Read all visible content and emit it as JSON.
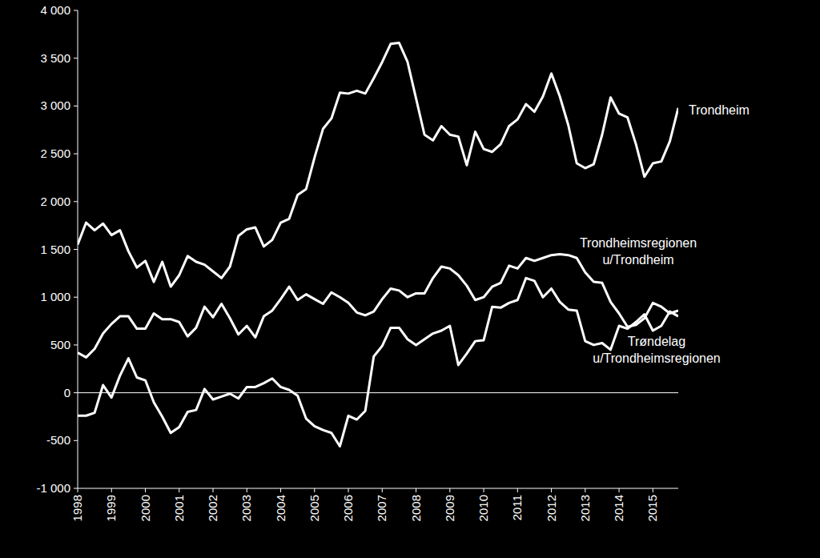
{
  "chart_data": {
    "type": "line",
    "x": [
      1998,
      1998.25,
      1998.5,
      1998.75,
      1999,
      1999.25,
      1999.5,
      1999.75,
      2000,
      2000.25,
      2000.5,
      2000.75,
      2001,
      2001.25,
      2001.5,
      2001.75,
      2002,
      2002.25,
      2002.5,
      2002.75,
      2003,
      2003.25,
      2003.5,
      2003.75,
      2004,
      2004.25,
      2004.5,
      2004.75,
      2005,
      2005.25,
      2005.5,
      2005.75,
      2006,
      2006.25,
      2006.5,
      2006.75,
      2007,
      2007.25,
      2007.5,
      2007.75,
      2008,
      2008.25,
      2008.5,
      2008.75,
      2009,
      2009.25,
      2009.5,
      2009.75,
      2010,
      2010.25,
      2010.5,
      2010.75,
      2011,
      2011.25,
      2011.5,
      2011.75,
      2012,
      2012.25,
      2012.5,
      2012.75,
      2013,
      2013.25,
      2013.5,
      2013.75,
      2014,
      2014.25,
      2014.5,
      2014.75,
      2015,
      2015.25,
      2015.5,
      2015.75
    ],
    "series": [
      {
        "name": "Trondheim",
        "color": "#ffffff",
        "values": [
          1550,
          1780,
          1700,
          1770,
          1650,
          1700,
          1480,
          1310,
          1380,
          1160,
          1370,
          1110,
          1230,
          1430,
          1370,
          1340,
          1270,
          1200,
          1320,
          1640,
          1710,
          1730,
          1530,
          1600,
          1780,
          1820,
          2070,
          2130,
          2460,
          2760,
          2870,
          3140,
          3130,
          3160,
          3130,
          3290,
          3460,
          3650,
          3660,
          3460,
          3080,
          2700,
          2640,
          2790,
          2700,
          2680,
          2380,
          2730,
          2550,
          2520,
          2600,
          2790,
          2860,
          3020,
          2940,
          3100,
          3340,
          3100,
          2800,
          2400,
          2350,
          2390,
          2700,
          3090,
          2920,
          2880,
          2600,
          2260,
          2400,
          2420,
          2630,
          2980
        ]
      },
      {
        "name": "Trondheimsregionen u/Trondheim",
        "color": "#ffffff",
        "values": [
          420,
          370,
          460,
          620,
          720,
          800,
          800,
          670,
          670,
          830,
          770,
          770,
          740,
          590,
          680,
          900,
          790,
          930,
          780,
          610,
          700,
          580,
          800,
          860,
          980,
          1110,
          970,
          1030,
          980,
          930,
          1050,
          1000,
          940,
          840,
          810,
          850,
          980,
          1090,
          1070,
          1000,
          1040,
          1040,
          1200,
          1320,
          1300,
          1230,
          1120,
          970,
          1000,
          1110,
          1150,
          1330,
          1300,
          1410,
          1380,
          1410,
          1440,
          1450,
          1440,
          1410,
          1260,
          1160,
          1150,
          950,
          830,
          690,
          710,
          780,
          940,
          900,
          830,
          860
        ]
      },
      {
        "name": "Trøndelag u/Trondheimsregionen",
        "color": "#ffffff",
        "values": [
          -240,
          -240,
          -210,
          80,
          -50,
          180,
          360,
          160,
          130,
          -100,
          -250,
          -420,
          -360,
          -200,
          -180,
          40,
          -70,
          -40,
          -10,
          -60,
          60,
          60,
          100,
          150,
          60,
          30,
          -30,
          -270,
          -350,
          -390,
          -420,
          -560,
          -240,
          -280,
          -190,
          380,
          490,
          680,
          680,
          560,
          500,
          560,
          620,
          650,
          700,
          290,
          410,
          540,
          550,
          900,
          890,
          940,
          970,
          1200,
          1170,
          1000,
          1090,
          950,
          870,
          860,
          540,
          500,
          520,
          450,
          700,
          670,
          740,
          820,
          650,
          700,
          850,
          800
        ]
      }
    ],
    "xlim": [
      1998,
      2015.75
    ],
    "xticks": [
      1998,
      1999,
      2000,
      2001,
      2002,
      2003,
      2004,
      2005,
      2006,
      2007,
      2008,
      2009,
      2010,
      2011,
      2012,
      2013,
      2014,
      2015
    ],
    "ylim": [
      -1000,
      4000
    ],
    "yticks": [
      {
        "value": -1000,
        "label": "-1 000"
      },
      -500,
      0,
      500,
      {
        "value": 1000,
        "label": "1 000"
      },
      {
        "value": 1500,
        "label": "1 500"
      },
      {
        "value": 2000,
        "label": "2 000"
      },
      {
        "value": 2500,
        "label": "2 500"
      },
      {
        "value": 3000,
        "label": "3 000"
      },
      {
        "value": 3500,
        "label": "3 500"
      },
      {
        "value": 4000,
        "label": "4 000"
      }
    ],
    "grid": false
  }
}
